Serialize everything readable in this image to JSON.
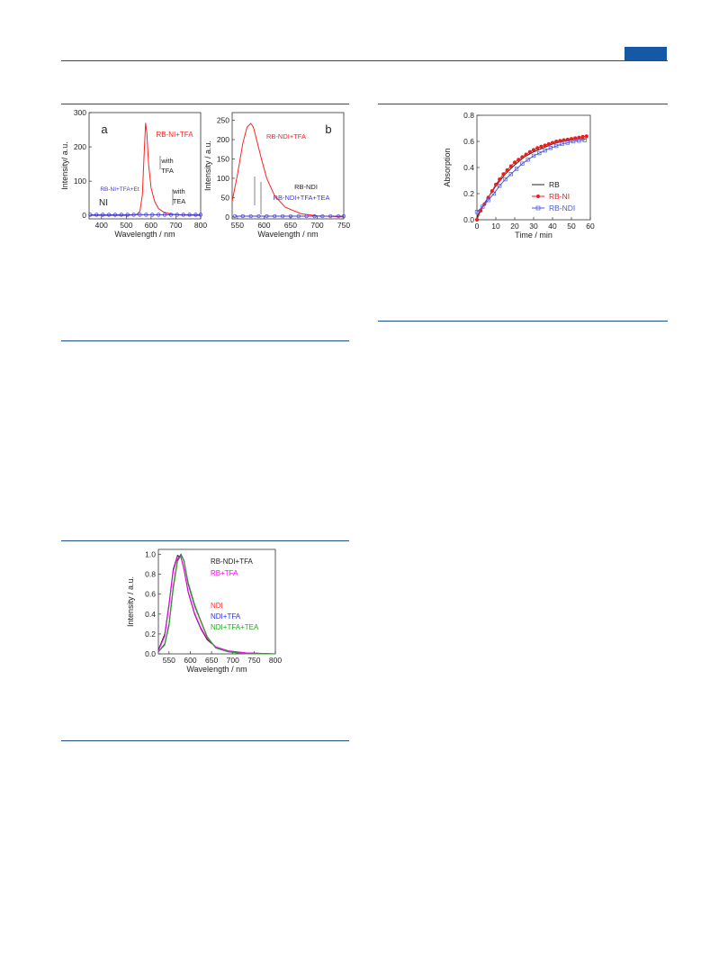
{
  "header": {
    "accent_color": "#1558a6",
    "rule_color": "#1f4e86"
  },
  "figures": [
    {
      "id": "fig_a_b",
      "panels": [
        {
          "panel_label": "a",
          "chart_data": {
            "type": "line",
            "xlabel": "Wavelength / nm",
            "ylabel": "Intensity/ a.u.",
            "xlim": [
              350,
              800
            ],
            "ylim": [
              -10,
              300
            ],
            "xticks": [
              400,
              500,
              600,
              700,
              800
            ],
            "yticks": [
              0,
              100,
              200,
              300
            ],
            "series": [
              {
                "name": "RB-NI+TFA",
                "color": "#ff2020",
                "x": [
                  350,
                  500,
                  540,
                  555,
                  565,
                  572,
                  578,
                  583,
                  590,
                  600,
                  615,
                  630,
                  650,
                  680,
                  720,
                  800
                ],
                "y": [
                  0,
                  0,
                  2,
                  12,
                  60,
                  180,
                  270,
                  240,
                  150,
                  80,
                  40,
                  20,
                  10,
                  4,
                  1,
                  0
                ]
              },
              {
                "name": "RB-NI+TFA+Et3N",
                "color": "#3c3cd8",
                "x": [
                  355,
                  380,
                  405,
                  430,
                  455,
                  480,
                  505,
                  530,
                  555,
                  580,
                  605,
                  630,
                  655,
                  680,
                  705,
                  730,
                  755,
                  780,
                  800
                ],
                "y": [
                  2,
                  2,
                  2,
                  2,
                  2,
                  2,
                  2,
                  2,
                  2,
                  2,
                  2,
                  2,
                  2,
                  2,
                  2,
                  2,
                  2,
                  2,
                  2
                ]
              }
            ],
            "annotations": [
              "NI",
              "with",
              "TFA",
              "with",
              "TEA"
            ]
          }
        },
        {
          "panel_label": "b",
          "chart_data": {
            "type": "line",
            "xlabel": "Wavelength / nm",
            "ylabel": "Intensity / a.u.",
            "xlim": [
              540,
              750
            ],
            "ylim": [
              -5,
              270
            ],
            "xticks": [
              550,
              600,
              650,
              700,
              750
            ],
            "yticks": [
              0,
              50,
              100,
              150,
              200,
              250
            ],
            "series": [
              {
                "name": "RB-NDI+TFA",
                "color": "#ff2020",
                "x": [
                  540,
                  550,
                  560,
                  568,
                  575,
                  580,
                  585,
                  595,
                  605,
                  620,
                  640,
                  670,
                  700,
                  750
                ],
                "y": [
                  40,
                  110,
                  190,
                  232,
                  242,
                  232,
                  205,
                  150,
                  100,
                  55,
                  25,
                  8,
                  3,
                  0
                ]
              },
              {
                "name": "RB-NDI+TFA+TEA",
                "color": "#3c3cd8",
                "x": [
                  545,
                  560,
                  575,
                  590,
                  605,
                  620,
                  635,
                  650,
                  665,
                  680,
                  695,
                  710,
                  725,
                  740,
                  750
                ],
                "y": [
                  2,
                  2,
                  2,
                  2,
                  2,
                  2,
                  2,
                  2,
                  2,
                  2,
                  2,
                  2,
                  2,
                  2,
                  2
                ]
              }
            ],
            "annotations": [
              "RB-NDI"
            ]
          }
        }
      ]
    },
    {
      "id": "fig_absorption",
      "chart_data": {
        "type": "line",
        "xlabel": "Time / min",
        "ylabel": "Absorption",
        "xlim": [
          0,
          60
        ],
        "ylim": [
          0.0,
          0.8
        ],
        "xticks": [
          0,
          10,
          20,
          30,
          40,
          50,
          60
        ],
        "yticks": [
          "0.0",
          "0.2",
          "0.4",
          "0.6",
          "0.8"
        ],
        "legend_position": "bottom-right",
        "series": [
          {
            "name": "RB",
            "color": "#222222",
            "marker": "none",
            "x": [
              0,
              2,
              5,
              10,
              15,
              20,
              25,
              30,
              35,
              40,
              45,
              50,
              55,
              58
            ],
            "y": [
              0.02,
              0.08,
              0.15,
              0.26,
              0.35,
              0.42,
              0.48,
              0.52,
              0.55,
              0.58,
              0.6,
              0.61,
              0.62,
              0.62
            ]
          },
          {
            "name": "RB-NI",
            "color": "#ee1c1c",
            "marker": "filled-circle",
            "x": [
              0,
              2,
              4,
              6,
              8,
              10,
              12,
              14,
              16,
              18,
              20,
              22,
              24,
              26,
              28,
              30,
              32,
              34,
              36,
              38,
              40,
              42,
              44,
              46,
              48,
              50,
              52,
              54,
              56,
              58
            ],
            "y": [
              0.0,
              0.07,
              0.12,
              0.17,
              0.22,
              0.27,
              0.31,
              0.35,
              0.38,
              0.41,
              0.44,
              0.46,
              0.48,
              0.5,
              0.52,
              0.535,
              0.55,
              0.56,
              0.57,
              0.58,
              0.59,
              0.6,
              0.605,
              0.61,
              0.615,
              0.62,
              0.625,
              0.63,
              0.635,
              0.64
            ]
          },
          {
            "name": "RB-NDI",
            "color": "#4a5be0",
            "marker": "open-square",
            "x": [
              0,
              3,
              6,
              9,
              12,
              15,
              18,
              21,
              24,
              27,
              30,
              33,
              36,
              39,
              42,
              45,
              48,
              51,
              54,
              57
            ],
            "y": [
              0.06,
              0.1,
              0.15,
              0.2,
              0.26,
              0.31,
              0.35,
              0.39,
              0.43,
              0.46,
              0.49,
              0.51,
              0.53,
              0.55,
              0.565,
              0.58,
              0.59,
              0.6,
              0.605,
              0.61
            ]
          }
        ]
      }
    },
    {
      "id": "fig_normalized",
      "chart_data": {
        "type": "line",
        "xlabel": "Wavelength / nm",
        "ylabel": "Intensity / a.u.",
        "xlim": [
          525,
          800
        ],
        "ylim": [
          0.0,
          1.05
        ],
        "xticks": [
          550,
          600,
          650,
          700,
          750,
          800
        ],
        "yticks": [
          "0.0",
          "0.2",
          "0.4",
          "0.6",
          "0.8",
          "1.0"
        ],
        "series": [
          {
            "name": "RB-NDI+TFA",
            "color": "#222222",
            "x": [
              525,
              540,
              550,
              560,
              570,
              578,
              585,
              595,
              610,
              625,
              640,
              660,
              690,
              730,
              800
            ],
            "y": [
              0.04,
              0.2,
              0.5,
              0.85,
              0.99,
              0.97,
              0.85,
              0.62,
              0.4,
              0.25,
              0.14,
              0.07,
              0.03,
              0.01,
              0.0
            ]
          },
          {
            "name": "RB+TFA",
            "color": "#ff00ff",
            "x": [
              525,
              540,
              550,
              560,
              570,
              578,
              585,
              595,
              610,
              625,
              640,
              660,
              690,
              730,
              800
            ],
            "y": [
              0.03,
              0.18,
              0.48,
              0.83,
              0.98,
              0.97,
              0.86,
              0.63,
              0.41,
              0.26,
              0.15,
              0.07,
              0.03,
              0.01,
              0.0
            ]
          },
          {
            "name": "NDI",
            "color": "#ff3333",
            "x": [
              525,
              540,
              550,
              560,
              570,
              578,
              585,
              595,
              610,
              625,
              640,
              660,
              690,
              730,
              800
            ],
            "y": [
              0.02,
              0.1,
              0.3,
              0.68,
              0.95,
              1.0,
              0.93,
              0.7,
              0.48,
              0.32,
              0.16,
              0.06,
              0.02,
              0.0,
              0.0
            ]
          },
          {
            "name": "NDI+TFA",
            "color": "#3333dd",
            "x": [
              525,
              540,
              550,
              560,
              570,
              578,
              585,
              595,
              610,
              625,
              640,
              660,
              690,
              730,
              800
            ],
            "y": [
              0.02,
              0.1,
              0.29,
              0.66,
              0.94,
              1.0,
              0.94,
              0.71,
              0.49,
              0.33,
              0.17,
              0.06,
              0.02,
              0.0,
              0.0
            ]
          },
          {
            "name": "NDI+TFA+TEA",
            "color": "#22aa22",
            "x": [
              525,
              540,
              550,
              560,
              570,
              578,
              585,
              595,
              610,
              625,
              640,
              660,
              690,
              730,
              800
            ],
            "y": [
              0.02,
              0.09,
              0.28,
              0.65,
              0.93,
              0.99,
              0.94,
              0.72,
              0.5,
              0.33,
              0.17,
              0.06,
              0.02,
              0.0,
              0.0
            ]
          }
        ]
      }
    }
  ]
}
